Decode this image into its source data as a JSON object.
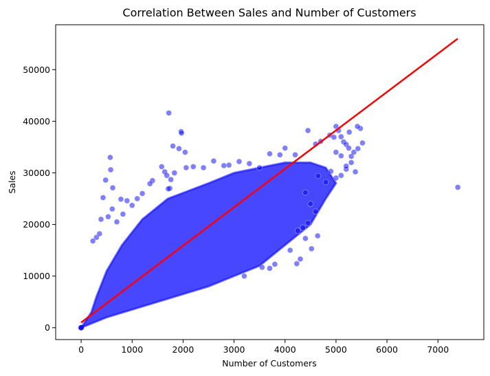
{
  "chart_data": {
    "type": "scatter",
    "title": "Correlation Between Sales and Number of Customers",
    "xlabel": "Number of Customers",
    "ylabel": "Sales",
    "xlim": [
      -500,
      7900
    ],
    "ylim": [
      -2300,
      58700
    ],
    "xticks": [
      "0",
      "1000",
      "2000",
      "3000",
      "4000",
      "5000",
      "6000",
      "7000"
    ],
    "yticks": [
      "0",
      "10000",
      "20000",
      "30000",
      "40000",
      "50000"
    ],
    "grid": false,
    "colors": {
      "points": "#0000ff",
      "regression": "#ff0000"
    },
    "regression_line": {
      "x": [
        0,
        7388
      ],
      "y": [
        1000,
        56000
      ]
    },
    "cloud": {
      "upper_edge": [
        [
          0,
          0
        ],
        [
          200,
          3000
        ],
        [
          300,
          6000
        ],
        [
          500,
          11000
        ],
        [
          800,
          16000
        ],
        [
          1200,
          21000
        ],
        [
          1700,
          25000
        ],
        [
          2500,
          28000
        ],
        [
          3000,
          30000
        ],
        [
          3500,
          31000
        ],
        [
          4000,
          32000
        ],
        [
          4500,
          32000
        ],
        [
          4800,
          31000
        ]
      ],
      "lower_edge": [
        [
          0,
          0
        ],
        [
          500,
          2000
        ],
        [
          1000,
          3500
        ],
        [
          1500,
          5000
        ],
        [
          2000,
          6500
        ],
        [
          2500,
          8000
        ],
        [
          3000,
          10000
        ],
        [
          3500,
          12000
        ],
        [
          4000,
          16000
        ],
        [
          4500,
          20000
        ],
        [
          4800,
          25000
        ],
        [
          5000,
          28000
        ]
      ]
    },
    "outliers": [
      [
        1720,
        41600
      ],
      [
        1960,
        38000
      ],
      [
        1970,
        37700
      ],
      [
        1800,
        35200
      ],
      [
        1920,
        34700
      ],
      [
        2040,
        34000
      ],
      [
        1580,
        31200
      ],
      [
        1640,
        30200
      ],
      [
        1680,
        29500
      ],
      [
        1400,
        28500
      ],
      [
        1350,
        27900
      ],
      [
        1740,
        27000
      ],
      [
        1830,
        30000
      ],
      [
        1760,
        28700
      ],
      [
        1710,
        26900
      ],
      [
        570,
        33000
      ],
      [
        580,
        30600
      ],
      [
        480,
        28600
      ],
      [
        430,
        25200
      ],
      [
        620,
        27100
      ],
      [
        530,
        21500
      ],
      [
        390,
        21000
      ],
      [
        300,
        17500
      ],
      [
        230,
        16800
      ],
      [
        360,
        18200
      ],
      [
        610,
        23000
      ],
      [
        780,
        24900
      ],
      [
        900,
        24600
      ],
      [
        1000,
        23700
      ],
      [
        1100,
        25000
      ],
      [
        1200,
        26000
      ],
      [
        700,
        20500
      ],
      [
        820,
        22000
      ],
      [
        2060,
        31000
      ],
      [
        2200,
        31200
      ],
      [
        2400,
        31000
      ],
      [
        2600,
        32300
      ],
      [
        2800,
        31400
      ],
      [
        2900,
        31500
      ],
      [
        3100,
        32200
      ],
      [
        3300,
        31800
      ],
      [
        3500,
        31000
      ],
      [
        3700,
        33700
      ],
      [
        4000,
        34800
      ],
      [
        3900,
        33500
      ],
      [
        4200,
        33500
      ],
      [
        4450,
        38200
      ],
      [
        4600,
        35600
      ],
      [
        4700,
        36100
      ],
      [
        4880,
        37300
      ],
      [
        4960,
        36900
      ],
      [
        4400,
        26200
      ],
      [
        4500,
        24000
      ],
      [
        4600,
        22500
      ],
      [
        4450,
        20300
      ],
      [
        4350,
        19400
      ],
      [
        4250,
        18800
      ],
      [
        4640,
        17800
      ],
      [
        4400,
        17300
      ],
      [
        4520,
        15300
      ],
      [
        4300,
        13300
      ],
      [
        4230,
        12400
      ],
      [
        3800,
        12300
      ],
      [
        3700,
        11500
      ],
      [
        3550,
        11700
      ],
      [
        3200,
        10000
      ],
      [
        4100,
        15000
      ],
      [
        5000,
        39000
      ],
      [
        5050,
        38200
      ],
      [
        5100,
        37000
      ],
      [
        5150,
        36000
      ],
      [
        5200,
        35500
      ],
      [
        5250,
        34800
      ],
      [
        5000,
        34000
      ],
      [
        5100,
        33300
      ],
      [
        5300,
        33200
      ],
      [
        5350,
        34000
      ],
      [
        5430,
        34700
      ],
      [
        5480,
        38600
      ],
      [
        5520,
        35800
      ],
      [
        5380,
        30200
      ],
      [
        5300,
        32000
      ],
      [
        5200,
        30700
      ],
      [
        5100,
        29500
      ],
      [
        5000,
        29000
      ],
      [
        4900,
        30300
      ],
      [
        4800,
        28200
      ],
      [
        4650,
        29400
      ],
      [
        5260,
        37900
      ],
      [
        5420,
        39000
      ],
      [
        5200,
        31300
      ],
      [
        7390,
        27200
      ]
    ]
  }
}
